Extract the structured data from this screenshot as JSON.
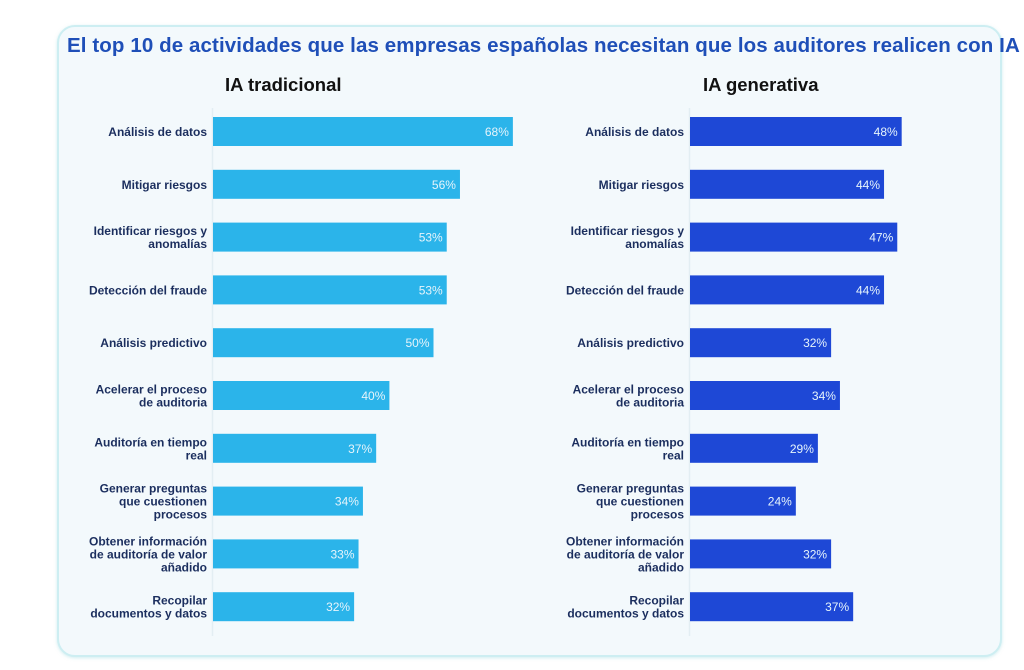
{
  "chart_data": [
    {
      "type": "bar",
      "orientation": "horizontal",
      "title": "IA tradicional",
      "suptitle": "El top 10 de actividades que las empresas españolas necesitan que los auditores realicen con IA",
      "categories": [
        [
          "Análisis de datos"
        ],
        [
          "Mitigar riesgos"
        ],
        [
          "Identificar riesgos y",
          "anomalías"
        ],
        [
          "Detección del fraude"
        ],
        [
          "Análisis predictivo"
        ],
        [
          "Acelerar el proceso",
          "de auditoria"
        ],
        [
          "Auditoría en tiempo",
          "real"
        ],
        [
          "Generar preguntas",
          "que cuestionen",
          "procesos"
        ],
        [
          "Obtener información",
          "de auditoría de valor",
          "añadido"
        ],
        [
          "Recopilar",
          "documentos y datos"
        ]
      ],
      "values": [
        68,
        56,
        53,
        53,
        50,
        40,
        37,
        34,
        33,
        32
      ],
      "value_labels": [
        "68%",
        "56%",
        "53%",
        "53%",
        "50%",
        "40%",
        "37%",
        "34%",
        "33%",
        "32%"
      ],
      "unit": "%",
      "xlim": [
        0,
        100
      ],
      "grid": false,
      "color": "#2bb4ea",
      "xlabel": "",
      "ylabel": ""
    },
    {
      "type": "bar",
      "orientation": "horizontal",
      "title": "IA generativa",
      "categories": [
        [
          "Análisis de datos"
        ],
        [
          "Mitigar riesgos"
        ],
        [
          "Identificar riesgos y",
          "anomalías"
        ],
        [
          "Detección del fraude"
        ],
        [
          "Análisis predictivo"
        ],
        [
          "Acelerar el proceso",
          "de auditoria"
        ],
        [
          "Auditoría en tiempo",
          "real"
        ],
        [
          "Generar preguntas",
          "que cuestionen",
          "procesos"
        ],
        [
          "Obtener información",
          "de auditoría de valor",
          "añadido"
        ],
        [
          "Recopilar",
          "documentos y datos"
        ]
      ],
      "values": [
        48,
        44,
        47,
        44,
        32,
        34,
        29,
        24,
        32,
        37
      ],
      "value_labels": [
        "48%",
        "44%",
        "47%",
        "44%",
        "32%",
        "34%",
        "29%",
        "24%",
        "32%",
        "37%"
      ],
      "unit": "%",
      "xlim": [
        0,
        100
      ],
      "grid": false,
      "color": "#1e48d6",
      "xlabel": "",
      "ylabel": ""
    }
  ],
  "header": {
    "title": "El top 10 de actividades que las empresas españolas necesitan que los auditores realicen con IA",
    "left_panel_title": "IA tradicional",
    "right_panel_title": "IA generativa"
  }
}
